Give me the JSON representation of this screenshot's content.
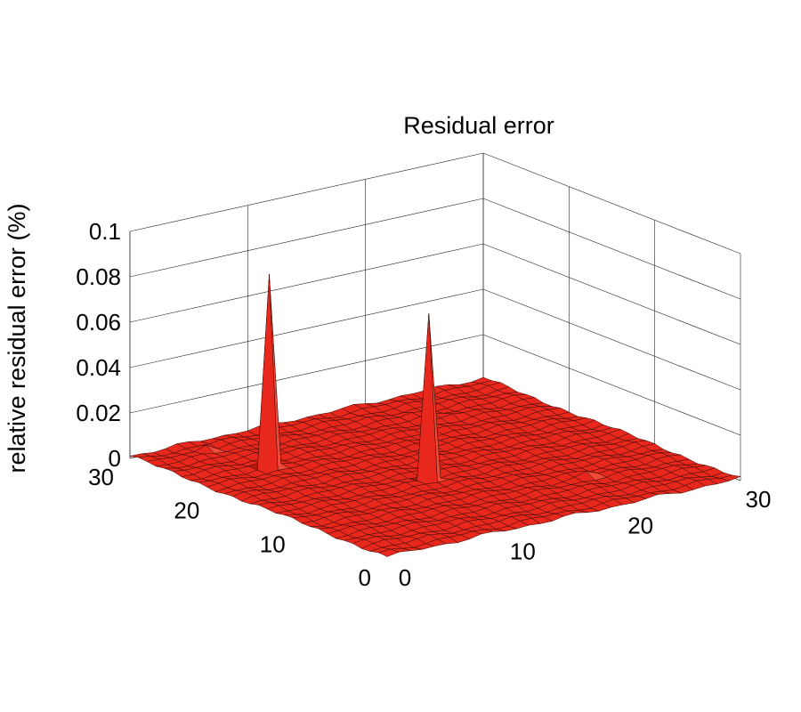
{
  "chart_data": {
    "type": "surface",
    "title": "Residual error",
    "zlabel": "relative residual error (%)",
    "xlabel": "",
    "ylabel": "",
    "x_range": [
      0,
      30
    ],
    "y_range": [
      0,
      30
    ],
    "z_range": [
      0,
      0.1
    ],
    "x_ticks": [
      "0",
      "10",
      "20",
      "30"
    ],
    "y_ticks": [
      "0",
      "10",
      "20",
      "30"
    ],
    "z_ticks": [
      "0",
      "0.02",
      "0.04",
      "0.06",
      "0.08",
      "0.1"
    ],
    "grid": true,
    "grid_size": 31,
    "baseline_level": 0.002,
    "surface_color": "#e8281c",
    "edge_color": "#3a0a06",
    "peaks": [
      {
        "x": 6,
        "y": 22,
        "z": 0.086
      },
      {
        "x": 13,
        "y": 13,
        "z": 0.074
      },
      {
        "x": 5,
        "y": 28,
        "z": 0.003
      },
      {
        "x": 22,
        "y": 7,
        "z": 0.003
      },
      {
        "x": 21,
        "y": 26,
        "z": 0.002
      },
      {
        "x": 23,
        "y": 24,
        "z": 0.002
      }
    ]
  }
}
